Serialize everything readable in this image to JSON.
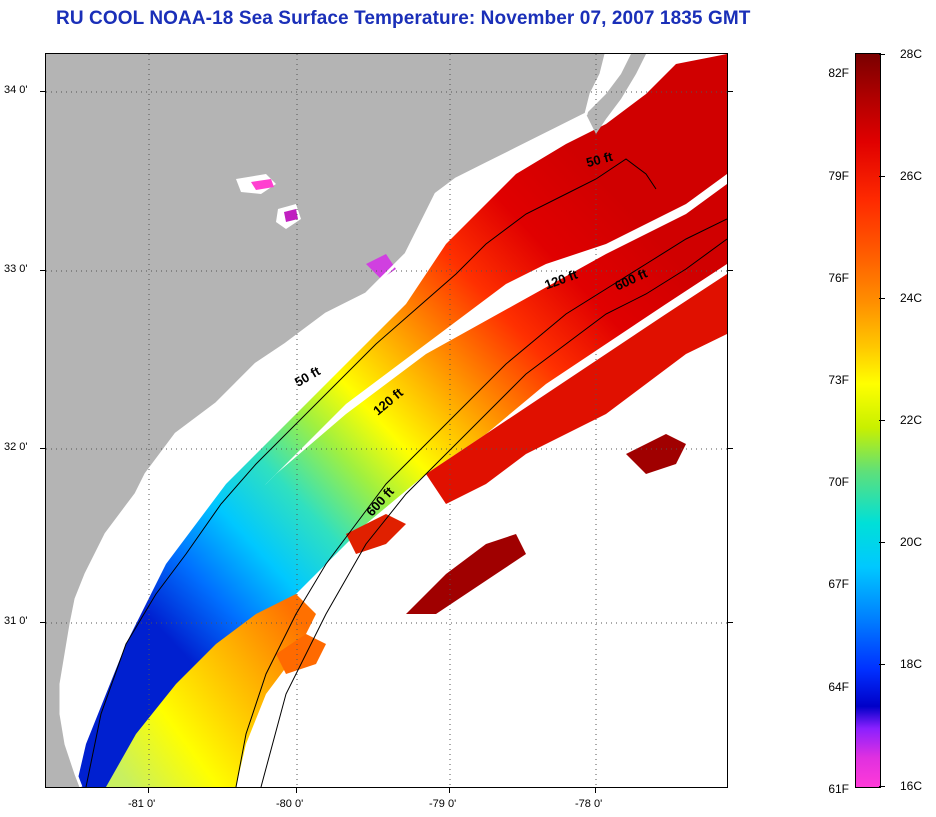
{
  "title": "RU COOL  NOAA-18  Sea Surface Temperature:  November 07, 2007 1835 GMT",
  "map": {
    "lat_labels": [
      "34 0'",
      "33 0'",
      "32 0'",
      "31 0'"
    ],
    "lon_labels": [
      "-81 0'",
      "-80 0'",
      "-79 0'",
      "-78 0'"
    ],
    "contours": [
      "50 ft",
      "50 ft",
      "120 ft",
      "120 ft",
      "600 ft",
      "600 ft"
    ],
    "colors": {
      "land": "#b4b4b4",
      "cloud": "#ffffff",
      "contour": "#000000"
    }
  },
  "colorbar": {
    "fahrenheit": [
      "82F",
      "79F",
      "76F",
      "73F",
      "70F",
      "67F",
      "64F",
      "61F"
    ],
    "celsius": [
      "28C",
      "26C",
      "24C",
      "22C",
      "20C",
      "18C",
      "16C"
    ]
  }
}
